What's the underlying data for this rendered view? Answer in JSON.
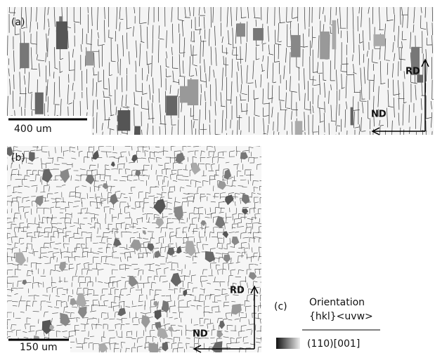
{
  "panels": [
    {
      "label": "(a)",
      "scale_bar": "400 um",
      "axes": {
        "up": "RD",
        "left": "ND"
      }
    },
    {
      "label": "(b)",
      "scale_bar": "150 um",
      "axes": {
        "up": "RD",
        "left": "ND"
      }
    }
  ],
  "legend": {
    "label": "(c)",
    "title": "Orientation",
    "subtitle": "{hkl}<uvw>",
    "entry": "(110)[001]"
  }
}
